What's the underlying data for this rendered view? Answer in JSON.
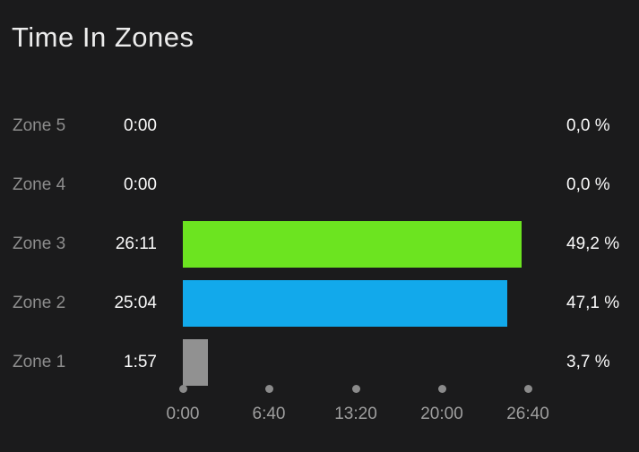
{
  "title": "Time In Zones",
  "colors": {
    "background": "#1B1B1C",
    "zone3_green": "#6CE420",
    "zone2_blue": "#12A9EB",
    "zone1_gray": "#919191",
    "label_gray": "#8D8D8D",
    "value_white": "#FAFAFA",
    "axis_gray": "#9E9E9E"
  },
  "chart_data": {
    "type": "bar",
    "orientation": "horizontal",
    "title": "Time In Zones",
    "categories": [
      "Zone 5",
      "Zone 4",
      "Zone 3",
      "Zone 2",
      "Zone 1"
    ],
    "rows": [
      {
        "zone": "Zone 5",
        "time": "0:00",
        "seconds": 0,
        "percent": 0.0,
        "percent_label": "0,0 %",
        "color": null
      },
      {
        "zone": "Zone 4",
        "time": "0:00",
        "seconds": 0,
        "percent": 0.0,
        "percent_label": "0,0 %",
        "color": null
      },
      {
        "zone": "Zone 3",
        "time": "26:11",
        "seconds": 1571,
        "percent": 49.2,
        "percent_label": "49,2 %",
        "color": "#6CE420"
      },
      {
        "zone": "Zone 2",
        "time": "25:04",
        "seconds": 1504,
        "percent": 47.1,
        "percent_label": "47,1 %",
        "color": "#12A9EB"
      },
      {
        "zone": "Zone 1",
        "time": "1:57",
        "seconds": 117,
        "percent": 3.7,
        "percent_label": "3,7 %",
        "color": "#919191"
      }
    ],
    "x_axis": {
      "ticks": [
        "0:00",
        "6:40",
        "13:20",
        "20:00",
        "26:40"
      ],
      "max_seconds": 1600,
      "grid": false
    },
    "legend": null
  }
}
